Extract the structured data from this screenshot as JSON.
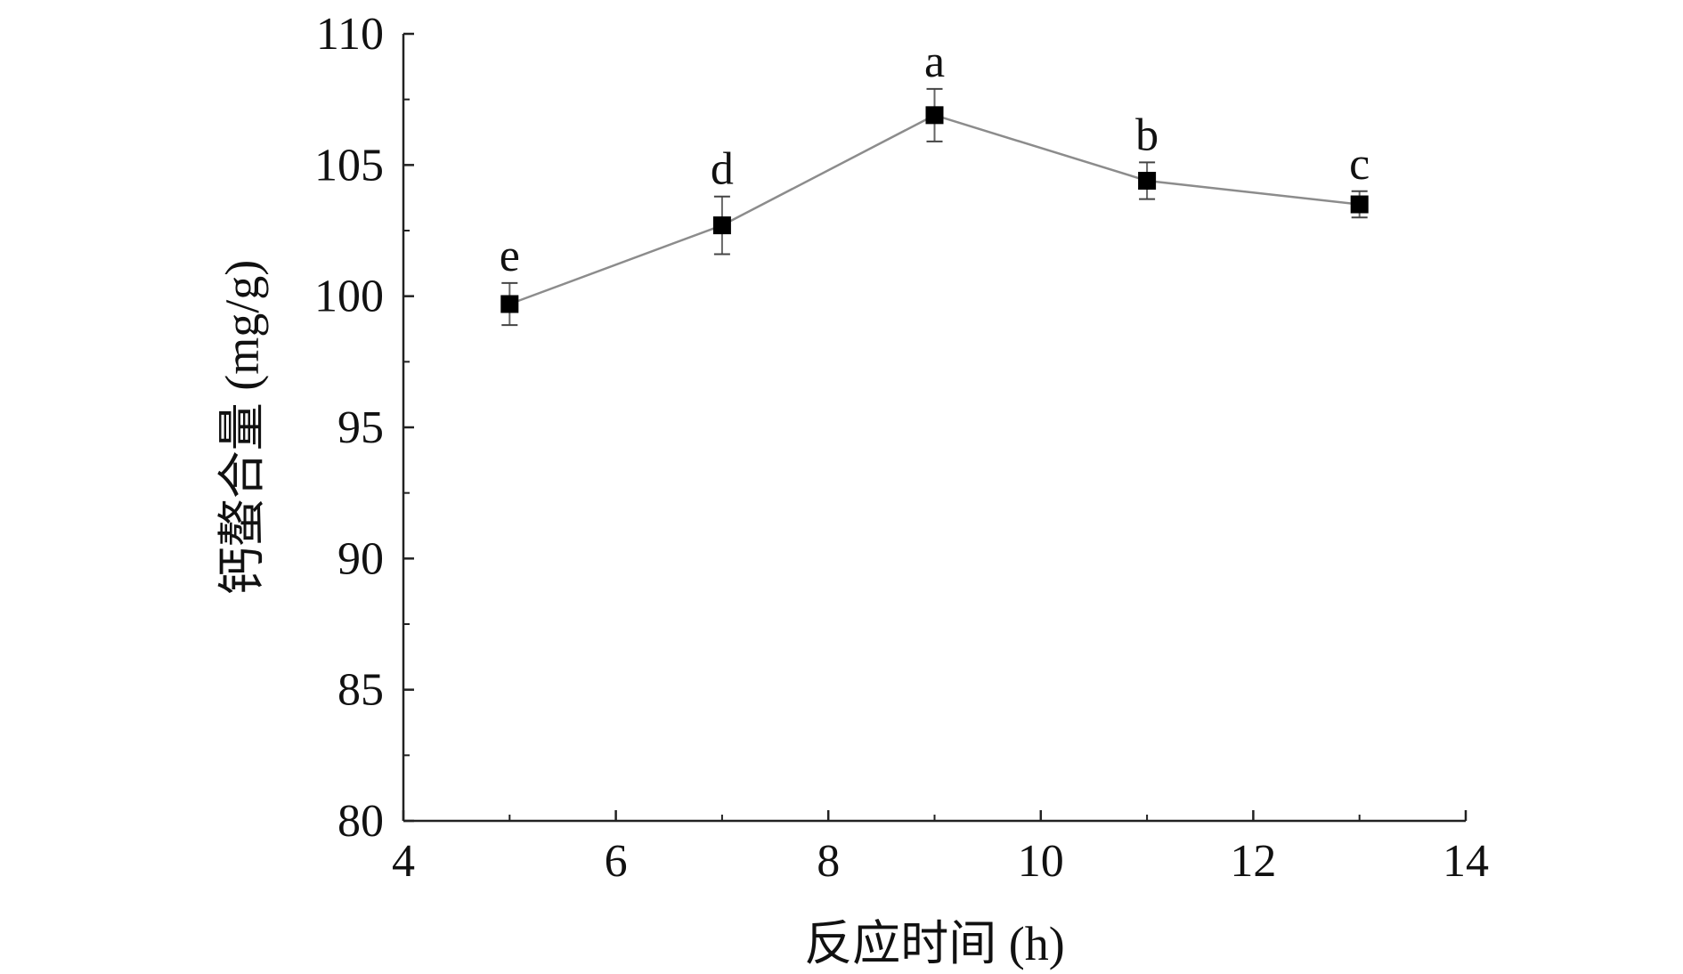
{
  "chart_data": {
    "type": "line",
    "title": "",
    "xlabel": "反应时间 (h)",
    "ylabel": "钙螯合量 (mg/g)",
    "xlim": [
      4,
      14
    ],
    "ylim": [
      80,
      110
    ],
    "xticks": [
      4,
      6,
      8,
      10,
      12,
      14
    ],
    "yticks": [
      80,
      85,
      90,
      95,
      100,
      105,
      110
    ],
    "grid": false,
    "marker": "square",
    "line_color": "#8c8c8c",
    "marker_color": "#000000",
    "series": [
      {
        "x": [
          5,
          7,
          9,
          11,
          13
        ],
        "y": [
          99.7,
          102.7,
          106.9,
          104.4,
          103.5
        ],
        "error": [
          0.8,
          1.1,
          1.0,
          0.7,
          0.5
        ],
        "labels": [
          "e",
          "d",
          "a",
          "b",
          "c"
        ]
      }
    ]
  }
}
